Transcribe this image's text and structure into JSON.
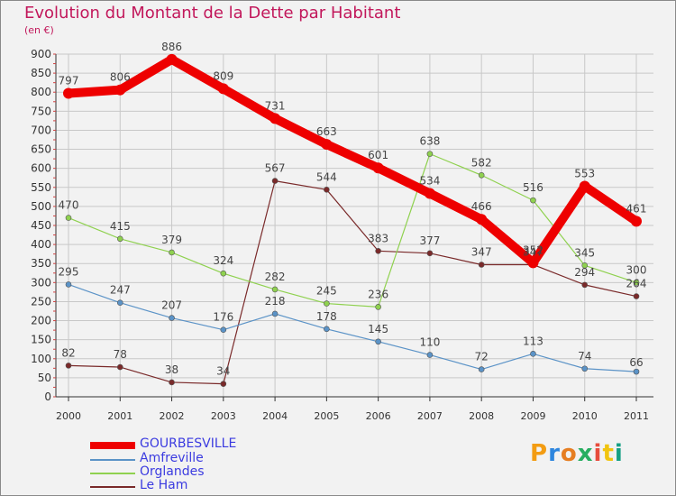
{
  "title": "Evolution du Montant de la Dette par Habitant",
  "subtitle": "(en €)",
  "brand": {
    "text": "Proxiti",
    "letters": [
      "P",
      "r",
      "o",
      "x",
      "i",
      "t",
      "i"
    ],
    "letter_colors": [
      "#f39c12",
      "#2e86de",
      "#e67e22",
      "#27ae60",
      "#e74c3c",
      "#f1c40f",
      "#16a085"
    ]
  },
  "chart_data": {
    "type": "line",
    "title": "Evolution du Montant de la Dette par Habitant",
    "subtitle": "(en €)",
    "xlabel": "",
    "ylabel": "",
    "x": [
      "2000",
      "2001",
      "2002",
      "2003",
      "2004",
      "2005",
      "2006",
      "2007",
      "2008",
      "2009",
      "2010",
      "2011"
    ],
    "ylim": [
      0,
      900
    ],
    "yticks": [
      "0",
      "50",
      "100",
      "150",
      "200",
      "250",
      "300",
      "350",
      "400",
      "450",
      "500",
      "550",
      "600",
      "650",
      "700",
      "750",
      "800",
      "850",
      "900"
    ],
    "grid": true,
    "legend_position": "bottom-left",
    "series": [
      {
        "name": "GOURBESVILLE",
        "color": "#ee0000",
        "values": [
          797,
          806,
          886,
          809,
          731,
          663,
          601,
          534,
          466,
          352,
          553,
          461
        ],
        "labels": [
          "797",
          "806",
          "886",
          "809",
          "731",
          "663",
          "601",
          "534",
          "466",
          "352",
          "553",
          "461"
        ]
      },
      {
        "name": "Amfreville",
        "color": "#5b93c7",
        "values": [
          295,
          247,
          207,
          176,
          218,
          178,
          145,
          110,
          72,
          113,
          74,
          66
        ],
        "labels": [
          "295",
          "247",
          "207",
          "176",
          "218",
          "178",
          "145",
          "110",
          "72",
          "113",
          "74",
          "66"
        ]
      },
      {
        "name": "Orglandes",
        "color": "#8fd14f",
        "values": [
          470,
          415,
          379,
          324,
          282,
          245,
          236,
          638,
          582,
          516,
          345,
          300
        ],
        "labels": [
          "470",
          "415",
          "379",
          "324",
          "282",
          "245",
          "236",
          "638",
          "582",
          "516",
          "345",
          "300"
        ]
      },
      {
        "name": "Le Ham",
        "color": "#7a2a2a",
        "values": [
          82,
          78,
          38,
          34,
          567,
          544,
          383,
          377,
          347,
          347,
          294,
          264
        ],
        "labels": [
          "82",
          "78",
          "38",
          "34",
          "567",
          "544",
          "383",
          "377",
          "347",
          "347",
          "294",
          "264"
        ]
      }
    ]
  }
}
